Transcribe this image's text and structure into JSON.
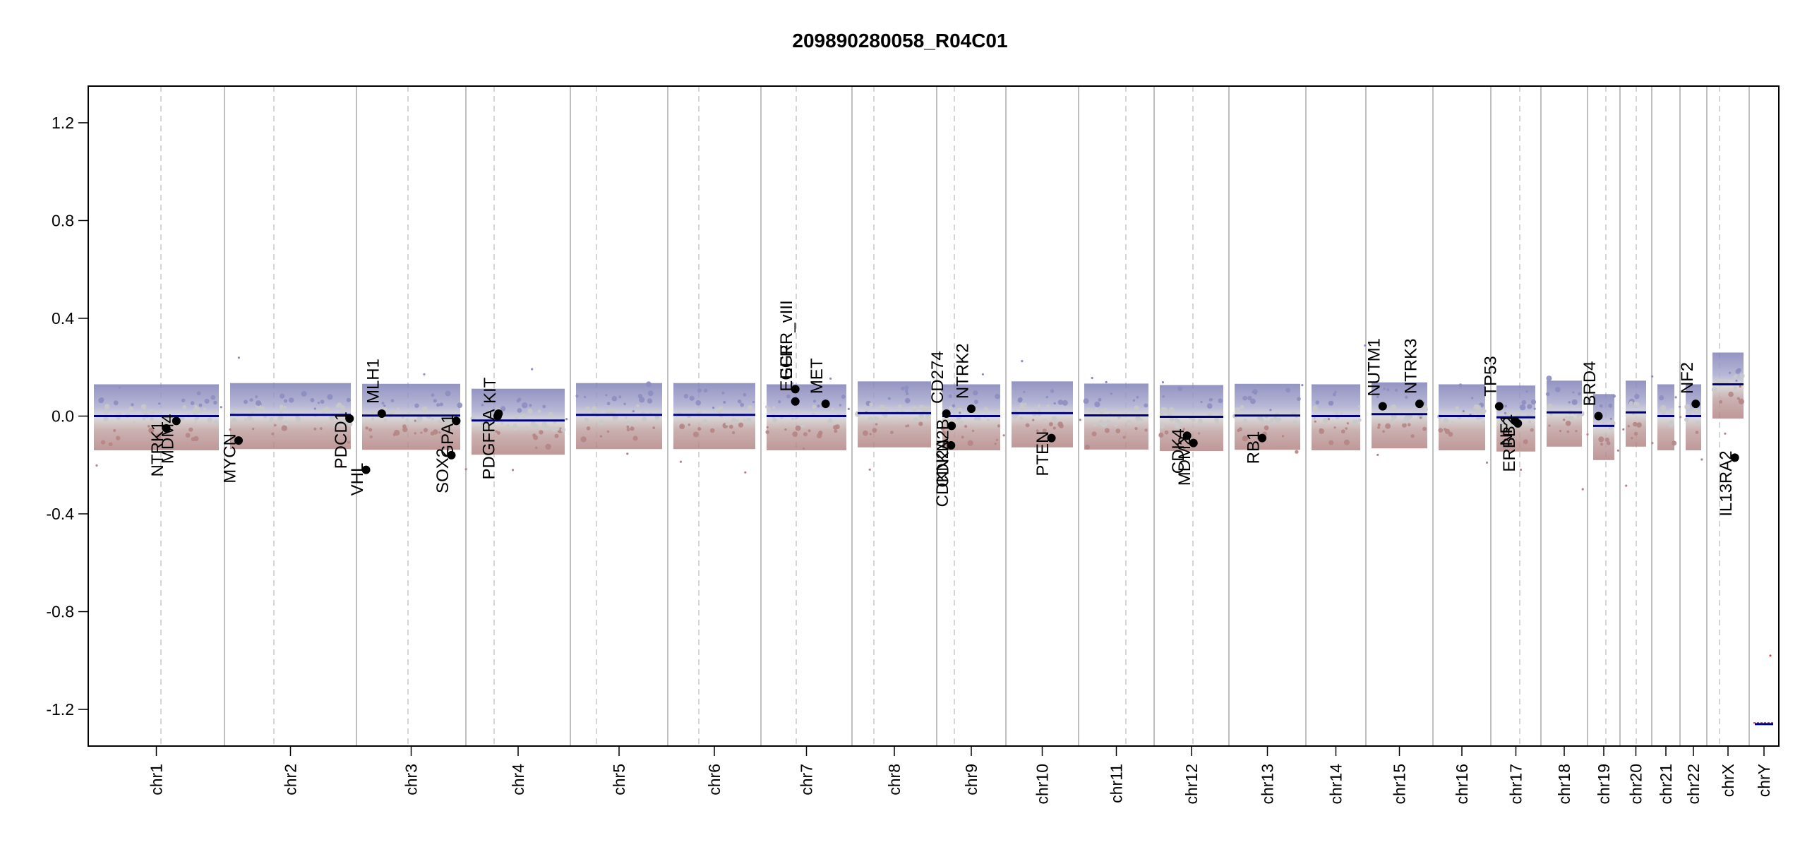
{
  "chart_data": {
    "type": "scatter",
    "title": "209890280058_R04C01",
    "xlabel": "",
    "ylabel": "",
    "ylim": [
      -1.35,
      1.35
    ],
    "y_ticks": [
      1.2,
      0.8,
      0.4,
      0.0,
      -0.4,
      -0.8,
      -1.2
    ],
    "y_tick_labels": [
      "1.2",
      "0.8",
      "0.4",
      "0.0",
      "-0.4",
      "-0.8",
      "-1.2"
    ],
    "chromosomes": [
      {
        "name": "chr1",
        "segments": [
          [
            0.0,
            1.0,
            0.0
          ]
        ]
      },
      {
        "name": "chr2",
        "segments": [
          [
            0.0,
            1.0,
            0.005
          ]
        ]
      },
      {
        "name": "chr3",
        "segments": [
          [
            0.0,
            1.0,
            0.002
          ]
        ]
      },
      {
        "name": "chr4",
        "segments": [
          [
            0.0,
            1.0,
            -0.018
          ]
        ]
      },
      {
        "name": "chr5",
        "segments": [
          [
            0.0,
            1.0,
            0.005
          ]
        ]
      },
      {
        "name": "chr6",
        "segments": [
          [
            0.0,
            1.0,
            0.005
          ]
        ]
      },
      {
        "name": "chr7",
        "segments": [
          [
            0.0,
            1.0,
            0.0
          ]
        ]
      },
      {
        "name": "chr8",
        "segments": [
          [
            0.0,
            1.0,
            0.012
          ]
        ]
      },
      {
        "name": "chr9",
        "segments": [
          [
            0.0,
            1.0,
            0.0
          ]
        ]
      },
      {
        "name": "chr10",
        "segments": [
          [
            0.0,
            1.0,
            0.012
          ]
        ]
      },
      {
        "name": "chr11",
        "segments": [
          [
            0.0,
            1.0,
            0.003
          ]
        ]
      },
      {
        "name": "chr12",
        "segments": [
          [
            0.0,
            1.0,
            -0.003
          ]
        ]
      },
      {
        "name": "chr13",
        "segments": [
          [
            0.0,
            1.0,
            0.002
          ]
        ]
      },
      {
        "name": "chr14",
        "segments": [
          [
            0.0,
            1.0,
            0.0
          ]
        ]
      },
      {
        "name": "chr15",
        "segments": [
          [
            0.0,
            1.0,
            0.008
          ]
        ]
      },
      {
        "name": "chr16",
        "segments": [
          [
            0.0,
            1.0,
            0.0
          ]
        ]
      },
      {
        "name": "chr17",
        "segments": [
          [
            0.0,
            1.0,
            -0.005
          ]
        ]
      },
      {
        "name": "chr18",
        "segments": [
          [
            0.0,
            1.0,
            0.015
          ]
        ]
      },
      {
        "name": "chr19",
        "segments": [
          [
            0.0,
            1.0,
            -0.04
          ]
        ]
      },
      {
        "name": "chr20",
        "segments": [
          [
            0.0,
            1.0,
            0.015
          ]
        ]
      },
      {
        "name": "chr21",
        "segments": [
          [
            0.0,
            1.0,
            0.0
          ]
        ]
      },
      {
        "name": "chr22",
        "segments": [
          [
            0.0,
            1.0,
            0.0
          ]
        ]
      },
      {
        "name": "chrX",
        "segments": [
          [
            0.0,
            1.0,
            0.13
          ]
        ]
      },
      {
        "name": "chrY",
        "segments": [
          [
            0.0,
            1.0,
            -1.26
          ]
        ]
      }
    ],
    "genes": [
      {
        "name": "NTRK1",
        "chr": "chr1",
        "pos": 0.58,
        "value": -0.05,
        "side": "below"
      },
      {
        "name": "MDM4",
        "chr": "chr1",
        "pos": 0.66,
        "value": -0.02,
        "side": "below"
      },
      {
        "name": "MYCN",
        "chr": "chr2",
        "pos": 0.07,
        "value": -0.1,
        "side": "below"
      },
      {
        "name": "VHL",
        "chr": "chr3",
        "pos": 0.04,
        "value": -0.22,
        "side": "below"
      },
      {
        "name": "PDCD1",
        "chr": "chr2",
        "pos": 0.99,
        "value": -0.01,
        "side": "below"
      },
      {
        "name": "MLH1",
        "chr": "chr3",
        "pos": 0.2,
        "value": 0.01,
        "side": "above"
      },
      {
        "name": "SOX2",
        "chr": "chr3",
        "pos": 0.91,
        "value": -0.16,
        "side": "below"
      },
      {
        "name": "GPA1",
        "chr": "chr3",
        "pos": 0.96,
        "value": -0.02,
        "side": "below"
      },
      {
        "name": "PDGFRA",
        "chr": "chr4",
        "pos": 0.28,
        "value": 0.0,
        "side": "below"
      },
      {
        "name": "KIT",
        "chr": "chr4",
        "pos": 0.29,
        "value": 0.01,
        "side": "above"
      },
      {
        "name": "EGFR_vIII",
        "chr": "chr7",
        "pos": 0.36,
        "value": 0.11,
        "side": "above"
      },
      {
        "name": "EGFR",
        "chr": "chr7",
        "pos": 0.36,
        "value": 0.06,
        "side": "above"
      },
      {
        "name": "MET",
        "chr": "chr7",
        "pos": 0.74,
        "value": 0.05,
        "side": "above"
      },
      {
        "name": "CD274",
        "chr": "chr9",
        "pos": 0.07,
        "value": 0.01,
        "side": "above"
      },
      {
        "name": "CDKN2A",
        "chr": "chr9",
        "pos": 0.15,
        "value": -0.12,
        "side": "below"
      },
      {
        "name": "CDKN2B",
        "chr": "chr9",
        "pos": 0.16,
        "value": -0.04,
        "side": "below"
      },
      {
        "name": "NTRK2",
        "chr": "chr9",
        "pos": 0.5,
        "value": 0.03,
        "side": "above"
      },
      {
        "name": "PTEN",
        "chr": "chr10",
        "pos": 0.65,
        "value": -0.09,
        "side": "below"
      },
      {
        "name": "CDK4",
        "chr": "chr12",
        "pos": 0.43,
        "value": -0.08,
        "side": "below"
      },
      {
        "name": "MDM2",
        "chr": "chr12",
        "pos": 0.53,
        "value": -0.11,
        "side": "below"
      },
      {
        "name": "RB1",
        "chr": "chr13",
        "pos": 0.42,
        "value": -0.09,
        "side": "below"
      },
      {
        "name": "NUTM1",
        "chr": "chr15",
        "pos": 0.2,
        "value": 0.04,
        "side": "above"
      },
      {
        "name": "NTRK3",
        "chr": "chr15",
        "pos": 0.86,
        "value": 0.05,
        "side": "above"
      },
      {
        "name": "TP53",
        "chr": "chr17",
        "pos": 0.07,
        "value": 0.04,
        "side": "above"
      },
      {
        "name": "NF1",
        "chr": "chr17",
        "pos": 0.48,
        "value": -0.02,
        "side": "below"
      },
      {
        "name": "ERBB2",
        "chr": "chr17",
        "pos": 0.55,
        "value": -0.03,
        "side": "below"
      },
      {
        "name": "BRD4",
        "chr": "chr19",
        "pos": 0.25,
        "value": 0.0,
        "side": "above"
      },
      {
        "name": "NF2",
        "chr": "chr22",
        "pos": 0.65,
        "value": 0.05,
        "side": "above"
      },
      {
        "name": "IL13RA2",
        "chr": "chrX",
        "pos": 0.72,
        "value": -0.17,
        "side": "below"
      }
    ],
    "colors": {
      "segment": "#00007f",
      "positive": "#8d8dc0",
      "negative": "#b58585",
      "neutral": "#c9c9c9",
      "chromosome_border": "#aaaaaa",
      "centromere": "#c8c8c8",
      "gene_point": "#000000"
    }
  }
}
